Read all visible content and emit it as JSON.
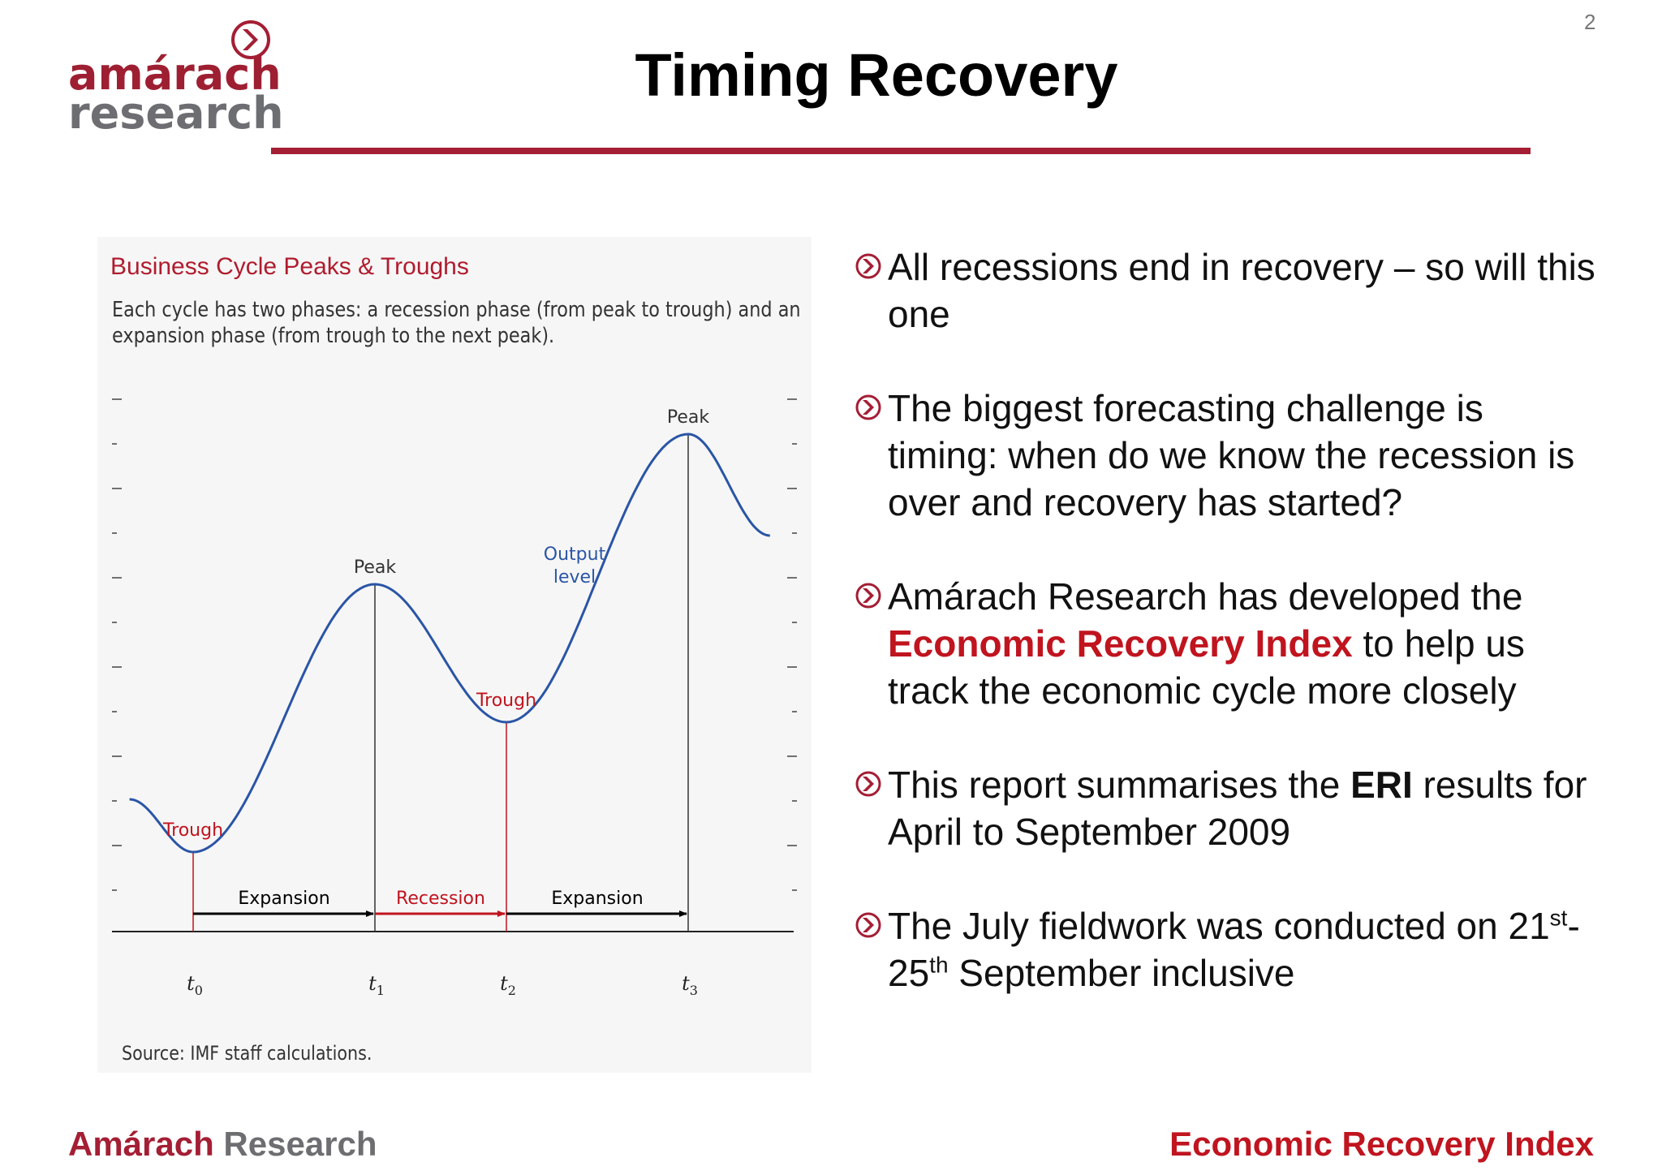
{
  "header": {
    "logo_line1": "amárach",
    "logo_line2": "research",
    "title": "Timing Recovery",
    "page_number": "2"
  },
  "chart": {
    "title": "Business Cycle Peaks & Troughs",
    "subtitle_line1": "Each cycle has two phases: a recession phase (from peak to trough) and an",
    "subtitle_line2": "expansion phase (from trough to the next peak).",
    "source": "Source: IMF staff calculations."
  },
  "chart_data": {
    "type": "line",
    "title": "Business Cycle Peaks & Troughs",
    "series": [
      {
        "name": "Output level",
        "points": [
          {
            "x": -0.35,
            "y": 1.5
          },
          {
            "x": 0,
            "y": 0.2
          },
          {
            "x": 1,
            "y": 6.8
          },
          {
            "x": 2,
            "y": 3.4
          },
          {
            "x": 3,
            "y": 10.5
          },
          {
            "x": 3.45,
            "y": 8.0
          }
        ]
      }
    ],
    "point_labels": [
      {
        "x": 0,
        "label": "Trough"
      },
      {
        "x": 1,
        "label": "Peak"
      },
      {
        "x": 2,
        "label": "Trough"
      },
      {
        "x": 3,
        "label": "Peak"
      }
    ],
    "series_label": "Output level",
    "x_ticks": [
      {
        "x": 0,
        "base": "t",
        "sub": "0"
      },
      {
        "x": 1,
        "base": "t",
        "sub": "1"
      },
      {
        "x": 2,
        "base": "t",
        "sub": "2"
      },
      {
        "x": 3,
        "base": "t",
        "sub": "3"
      }
    ],
    "phases": [
      {
        "from": 0,
        "to": 1,
        "label": "Expansion",
        "color": "#000000"
      },
      {
        "from": 1,
        "to": 2,
        "label": "Recession",
        "color": "#c0141f"
      },
      {
        "from": 2,
        "to": 3,
        "label": "Expansion",
        "color": "#000000"
      }
    ],
    "colors": {
      "line": "#2a55a6",
      "trough": "#c0141f",
      "peak": "#333333"
    }
  },
  "bullets": [
    {
      "text": " All recessions end in recovery – so will this one"
    },
    {
      "text": " The biggest forecasting challenge is timing: when do we know the recession is over and recovery has started?"
    },
    {
      "pre": " Amárach Research has developed the ",
      "highlight": "Economic Recovery Index",
      "post": " to help us track the economic cycle more closely"
    },
    {
      "pre": " This report summarises the ",
      "bold": "ERI",
      "post": " results for April to September 2009"
    },
    {
      "pre": "The July fieldwork was conducted on 21",
      "sup1": "st",
      "mid": "-25",
      "sup2": "th",
      "post": " September inclusive"
    }
  ],
  "footer": {
    "left_a": "Amárach",
    "left_b": " Research",
    "right": "Economic Recovery Index"
  },
  "colors": {
    "brand_red": "#a41e34",
    "accent_red": "#c0141f",
    "brand_grey": "#6d6e71"
  }
}
